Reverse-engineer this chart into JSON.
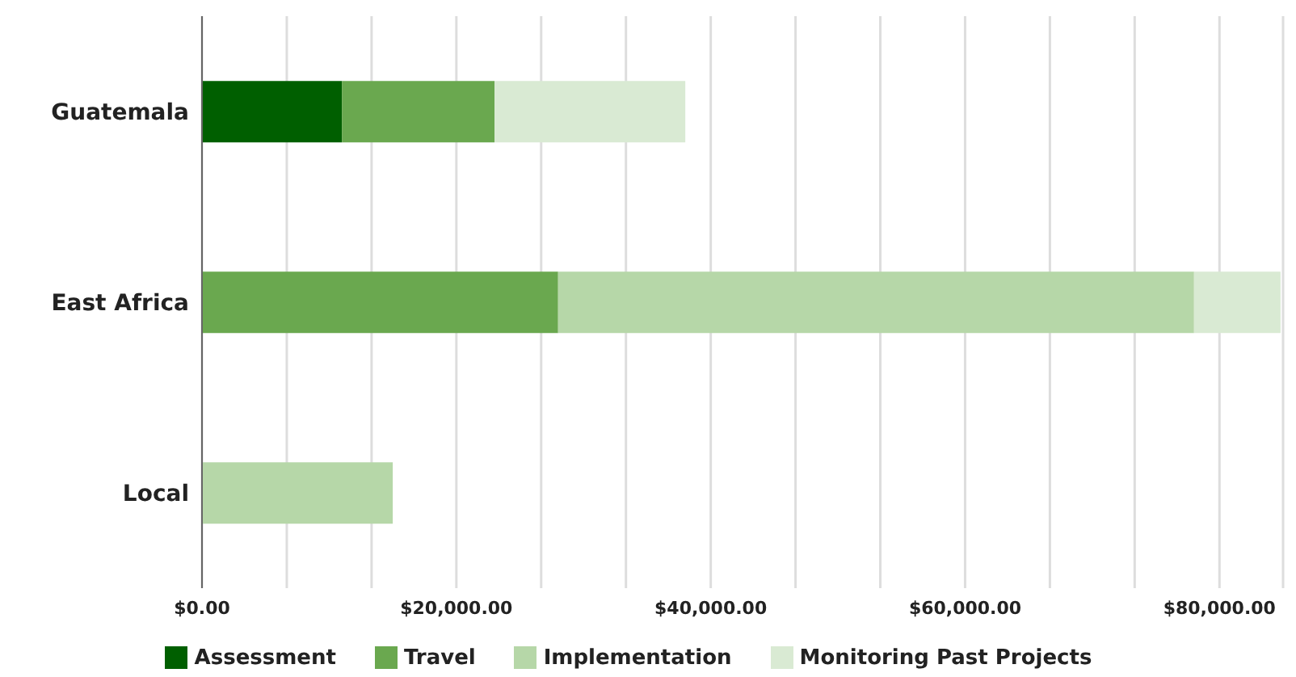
{
  "chart_data": {
    "type": "bar",
    "orientation": "horizontal",
    "stacked": true,
    "categories": [
      "Guatemala",
      "East Africa",
      "Local"
    ],
    "series": [
      {
        "name": "Assessment",
        "color": "#005f00",
        "values": [
          11000,
          null,
          null
        ]
      },
      {
        "name": "Travel",
        "color": "#6aa84f",
        "values": [
          12000,
          28000,
          null
        ]
      },
      {
        "name": "Implementation",
        "color": "#b6d7a8",
        "values": [
          null,
          50000,
          15000
        ]
      },
      {
        "name": "Monitoring Past Projects",
        "color": "#d9ead3",
        "values": [
          15000,
          6800,
          null
        ]
      }
    ],
    "xlim": [
      0,
      85000
    ],
    "xticks": [
      {
        "value": 0,
        "label": "$0.00"
      },
      {
        "value": 6666.67,
        "label": null
      },
      {
        "value": 13333.33,
        "label": null
      },
      {
        "value": 20000,
        "label": "$20,000.00"
      },
      {
        "value": 26666.67,
        "label": null
      },
      {
        "value": 33333.33,
        "label": null
      },
      {
        "value": 40000,
        "label": "$40,000.00"
      },
      {
        "value": 46666.67,
        "label": null
      },
      {
        "value": 53333.33,
        "label": null
      },
      {
        "value": 60000,
        "label": "$60,000.00"
      },
      {
        "value": 66666.67,
        "label": null
      },
      {
        "value": 73333.33,
        "label": null
      },
      {
        "value": 80000,
        "label": "$80,000.00"
      }
    ],
    "grid": "x",
    "legend": "bottom"
  }
}
